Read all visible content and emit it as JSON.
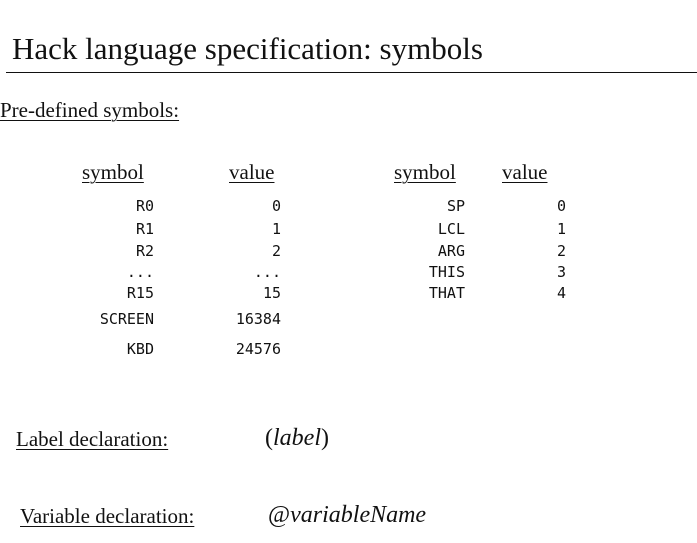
{
  "title": "Hack language specification: symbols",
  "predefined_label": "Pre-defined symbols:",
  "left_table": {
    "header_symbol": "symbol",
    "header_value": "value",
    "rows": [
      {
        "symbol": "R0",
        "value": "0"
      },
      {
        "symbol": "R1",
        "value": "1"
      },
      {
        "symbol": "R2",
        "value": "2"
      },
      {
        "symbol": "...",
        "value": "..."
      },
      {
        "symbol": "R15",
        "value": "15"
      },
      {
        "symbol": "SCREEN",
        "value": "16384"
      },
      {
        "symbol": "KBD",
        "value": "24576"
      }
    ]
  },
  "right_table": {
    "header_symbol": "symbol",
    "header_value": "value",
    "rows": [
      {
        "symbol": "SP",
        "value": "0"
      },
      {
        "symbol": "LCL",
        "value": "1"
      },
      {
        "symbol": "ARG",
        "value": "2"
      },
      {
        "symbol": "THIS",
        "value": "3"
      },
      {
        "symbol": "THAT",
        "value": "4"
      }
    ]
  },
  "label_decl": {
    "label": "Label declaration:",
    "open_paren": "(",
    "name": "label",
    "close_paren": ")"
  },
  "variable_decl": {
    "label": "Variable declaration:",
    "at": "@",
    "name": "variableName"
  }
}
